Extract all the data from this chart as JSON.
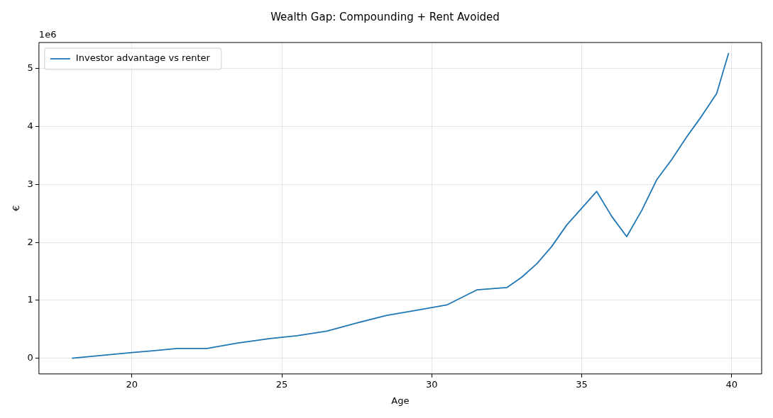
{
  "chart_data": {
    "type": "line",
    "title": "Wealth Gap: Compounding + Rent Avoided",
    "xlabel": "Age",
    "ylabel": "€",
    "annotations": [
      "1e6"
    ],
    "x": [
      18,
      20,
      20.7,
      21.5,
      22.5,
      23.5,
      24.6,
      25.5,
      26.5,
      27.5,
      28.5,
      29.5,
      30.5,
      31.5,
      32.5,
      33,
      33.5,
      34,
      34.5,
      35.5,
      36,
      36.5,
      37,
      37.5,
      38,
      38.5,
      39,
      39.5,
      39.9
    ],
    "series": [
      {
        "name": "Investor advantage vs renter",
        "color": "#1f77b4",
        "values": [
          0,
          0.1,
          0.13,
          0.17,
          0.17,
          0.26,
          0.34,
          0.39,
          0.47,
          0.61,
          0.74,
          0.83,
          0.92,
          1.18,
          1.22,
          1.4,
          1.63,
          1.93,
          2.3,
          2.88,
          2.45,
          2.1,
          2.55,
          3.08,
          3.43,
          3.82,
          4.18,
          4.57,
          5.27
        ]
      }
    ],
    "xlim": [
      16.9,
      41
    ],
    "xticks": [
      20,
      25,
      30,
      35,
      40
    ],
    "ylim": [
      -0.27,
      5.45
    ],
    "yticks": [
      0,
      1,
      2,
      3,
      4,
      5
    ],
    "grid": true,
    "legend": "top left",
    "line_style": "solid",
    "marker": "none"
  }
}
